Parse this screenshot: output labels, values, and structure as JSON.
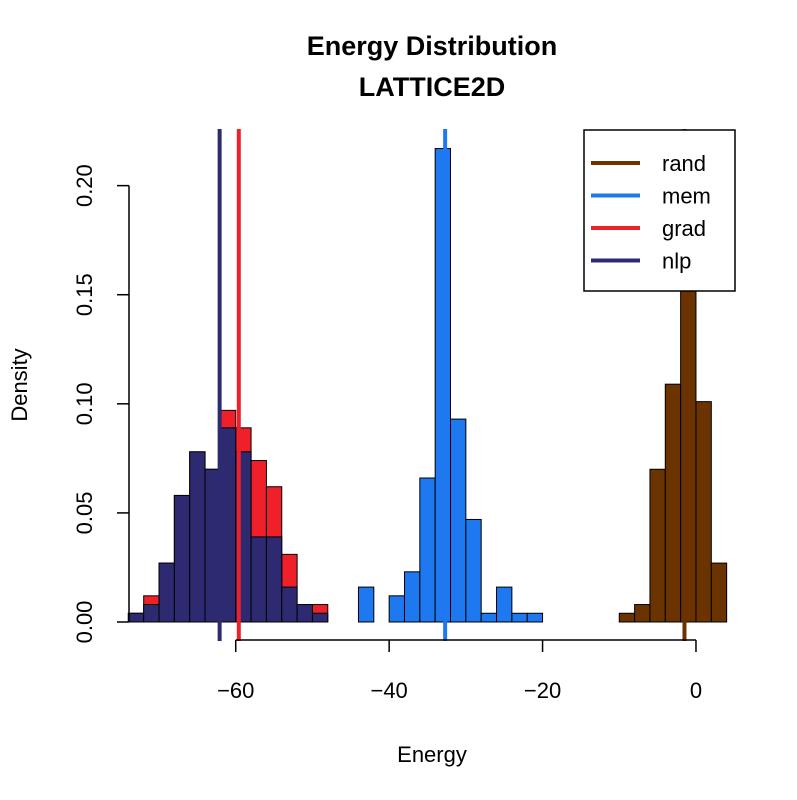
{
  "chart_data": {
    "type": "histogram",
    "title": "Energy Distribution",
    "subtitle": "LATTICE2D",
    "xlabel": "Energy",
    "ylabel": "Density",
    "xlim": [
      -76,
      6
    ],
    "ylim": [
      0,
      0.22
    ],
    "x_ticks": [
      -60,
      -40,
      -20,
      0
    ],
    "x_tick_labels": [
      "−60",
      "−40",
      "−20",
      "0"
    ],
    "y_ticks": [
      0.0,
      0.05,
      0.1,
      0.15,
      0.2
    ],
    "y_tick_labels": [
      "0.00",
      "0.05",
      "0.10",
      "0.15",
      "0.20"
    ],
    "grid": false,
    "legend_position": "top-right",
    "colors": {
      "rand": "#6b3300",
      "mem": "#1e78f0",
      "grad": "#f0202a",
      "nlp": "#2e2a72"
    },
    "series": [
      {
        "name": "rand",
        "color": "#6b3300",
        "bin_width": 2,
        "bins": [
          {
            "x0": -10,
            "x1": -8,
            "density": 0.004
          },
          {
            "x0": -8,
            "x1": -6,
            "density": 0.008
          },
          {
            "x0": -6,
            "x1": -4,
            "density": 0.07
          },
          {
            "x0": -4,
            "x1": -2,
            "density": 0.109
          },
          {
            "x0": -2,
            "x1": 0,
            "density": 0.154
          },
          {
            "x0": 0,
            "x1": 2,
            "density": 0.101
          },
          {
            "x0": 2,
            "x1": 4,
            "density": 0.027
          }
        ],
        "mean": -1.5
      },
      {
        "name": "mem",
        "color": "#1e78f0",
        "bin_width": 2,
        "bins": [
          {
            "x0": -44,
            "x1": -42,
            "density": 0.016
          },
          {
            "x0": -40,
            "x1": -38,
            "density": 0.012
          },
          {
            "x0": -38,
            "x1": -36,
            "density": 0.023
          },
          {
            "x0": -36,
            "x1": -34,
            "density": 0.066
          },
          {
            "x0": -34,
            "x1": -32,
            "density": 0.217
          },
          {
            "x0": -32,
            "x1": -30,
            "density": 0.093
          },
          {
            "x0": -30,
            "x1": -28,
            "density": 0.047
          },
          {
            "x0": -28,
            "x1": -26,
            "density": 0.004
          },
          {
            "x0": -26,
            "x1": -24,
            "density": 0.016
          },
          {
            "x0": -24,
            "x1": -22,
            "density": 0.004
          },
          {
            "x0": -22,
            "x1": -20,
            "density": 0.004
          }
        ],
        "mean": -32.7
      },
      {
        "name": "grad",
        "color": "#f0202a",
        "bin_width": 2,
        "bins": [
          {
            "x0": -74,
            "x1": -72,
            "density": 0.004
          },
          {
            "x0": -72,
            "x1": -70,
            "density": 0.012
          },
          {
            "x0": -70,
            "x1": -68,
            "density": 0.027
          },
          {
            "x0": -68,
            "x1": -66,
            "density": 0.058
          },
          {
            "x0": -66,
            "x1": -64,
            "density": 0.078
          },
          {
            "x0": -64,
            "x1": -62,
            "density": 0.07
          },
          {
            "x0": -62,
            "x1": -60,
            "density": 0.097
          },
          {
            "x0": -60,
            "x1": -58,
            "density": 0.089
          },
          {
            "x0": -58,
            "x1": -56,
            "density": 0.074
          },
          {
            "x0": -56,
            "x1": -54,
            "density": 0.062
          },
          {
            "x0": -54,
            "x1": -52,
            "density": 0.031
          },
          {
            "x0": -52,
            "x1": -50,
            "density": 0.008
          },
          {
            "x0": -50,
            "x1": -48,
            "density": 0.008
          }
        ],
        "mean": -59.6
      },
      {
        "name": "nlp",
        "color": "#2e2a72",
        "bin_width": 2,
        "bins": [
          {
            "x0": -74,
            "x1": -72,
            "density": 0.004
          },
          {
            "x0": -72,
            "x1": -70,
            "density": 0.008
          },
          {
            "x0": -70,
            "x1": -68,
            "density": 0.027
          },
          {
            "x0": -68,
            "x1": -66,
            "density": 0.058
          },
          {
            "x0": -66,
            "x1": -64,
            "density": 0.078
          },
          {
            "x0": -64,
            "x1": -62,
            "density": 0.07
          },
          {
            "x0": -62,
            "x1": -60,
            "density": 0.089
          },
          {
            "x0": -60,
            "x1": -58,
            "density": 0.078
          },
          {
            "x0": -58,
            "x1": -56,
            "density": 0.039
          },
          {
            "x0": -56,
            "x1": -54,
            "density": 0.039
          },
          {
            "x0": -54,
            "x1": -52,
            "density": 0.016
          },
          {
            "x0": -52,
            "x1": -50,
            "density": 0.008
          },
          {
            "x0": -50,
            "x1": -48,
            "density": 0.004
          }
        ],
        "mean": -62.1
      }
    ]
  }
}
